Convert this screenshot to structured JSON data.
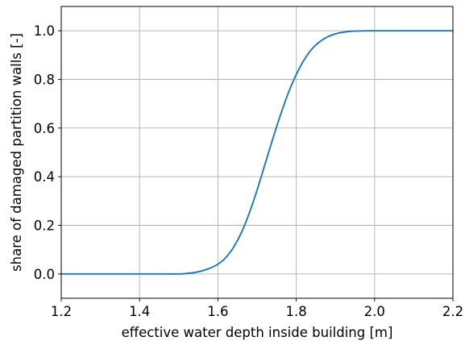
{
  "chart_data": {
    "type": "line",
    "title": "",
    "xlabel": "effective water depth inside building [m]",
    "ylabel": "share of damaged partition walls [-]",
    "xlim": [
      1.2,
      2.2
    ],
    "ylim": [
      -0.1,
      1.1
    ],
    "x_ticks": [
      1.2,
      1.4,
      1.6,
      1.8,
      2.0,
      2.2
    ],
    "x_tick_labels": [
      "1.2",
      "1.4",
      "1.6",
      "1.8",
      "2.0",
      "2.2"
    ],
    "y_ticks": [
      0.0,
      0.2,
      0.4,
      0.6,
      0.8,
      1.0
    ],
    "y_tick_labels": [
      "0.0",
      "0.2",
      "0.4",
      "0.6",
      "0.8",
      "1.0"
    ],
    "grid": true,
    "legend": "none",
    "series": [
      {
        "color": "#1f77b4",
        "x": [
          1.2,
          1.3,
          1.4,
          1.45,
          1.5,
          1.52,
          1.54,
          1.56,
          1.58,
          1.6,
          1.62,
          1.64,
          1.66,
          1.68,
          1.7,
          1.72,
          1.74,
          1.76,
          1.78,
          1.8,
          1.82,
          1.84,
          1.86,
          1.88,
          1.9,
          1.92,
          1.94,
          1.96,
          1.98,
          2.0,
          2.05,
          2.1,
          2.2
        ],
        "y": [
          0.0,
          0.0,
          0.0,
          0.0,
          0.0,
          0.002,
          0.006,
          0.013,
          0.024,
          0.04,
          0.067,
          0.11,
          0.17,
          0.25,
          0.345,
          0.45,
          0.555,
          0.655,
          0.745,
          0.82,
          0.88,
          0.925,
          0.955,
          0.975,
          0.987,
          0.994,
          0.998,
          0.999,
          1.0,
          1.0,
          1.0,
          1.0,
          1.0
        ]
      }
    ]
  }
}
